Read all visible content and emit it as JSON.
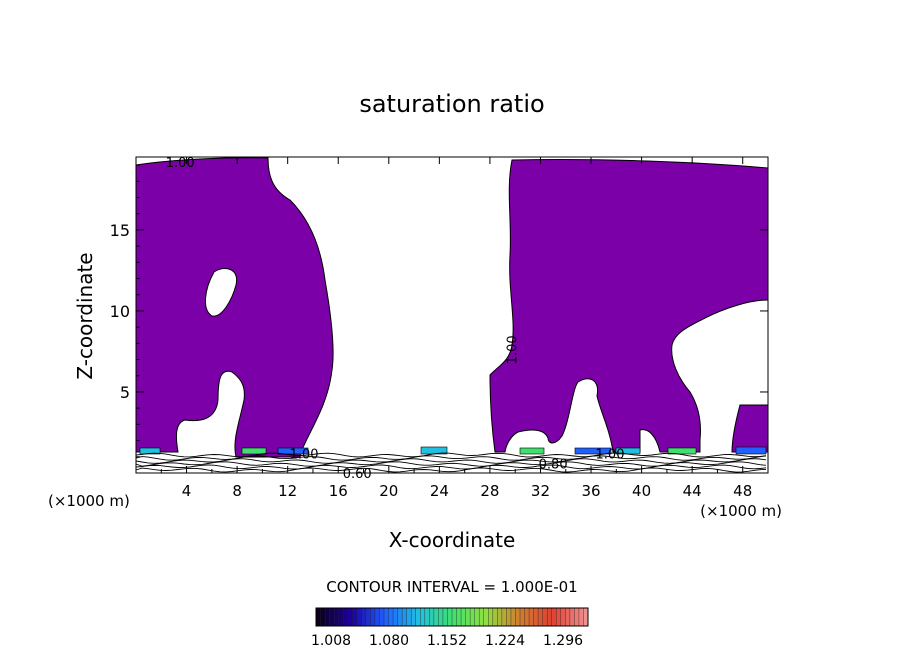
{
  "chart_data": {
    "type": "heatmap",
    "title": "saturation ratio",
    "xlabel": "X-coordinate",
    "ylabel": "Z-coordinate",
    "x_unit_label_left": "(×1000 m)",
    "x_unit_label_right": "(×1000 m)",
    "xlim": [
      0,
      50
    ],
    "ylim": [
      0,
      19.5
    ],
    "x_ticks": [
      4,
      8,
      12,
      16,
      20,
      24,
      28,
      32,
      36,
      40,
      44,
      48
    ],
    "y_ticks": [
      5,
      10,
      15
    ],
    "fill_color": "#7b00a8",
    "contour_labels": [
      {
        "text": "1.00",
        "x": 3.5,
        "y": 19.2
      },
      {
        "text": "1.00",
        "x": 29.7,
        "y": 7.6,
        "rotate": -90
      },
      {
        "text": "1.00",
        "x": 13.3,
        "y": 1.2
      },
      {
        "text": "1.00",
        "x": 37.5,
        "y": 1.2
      },
      {
        "text": "0.60",
        "x": 17.5,
        "y": 0.0
      },
      {
        "text": "0.80",
        "x": 33.0,
        "y": 0.6
      }
    ],
    "contour_interval": "CONTOUR INTERVAL = 1.000E-01",
    "colorbar": {
      "labels": [
        "1.008",
        "1.080",
        "1.152",
        "1.224",
        "1.296"
      ],
      "colors": [
        "#0c001c",
        "#1c00a0",
        "#2060ff",
        "#20c0e0",
        "#40e070",
        "#90e040",
        "#d08030",
        "#e04030",
        "#f09090"
      ]
    }
  }
}
